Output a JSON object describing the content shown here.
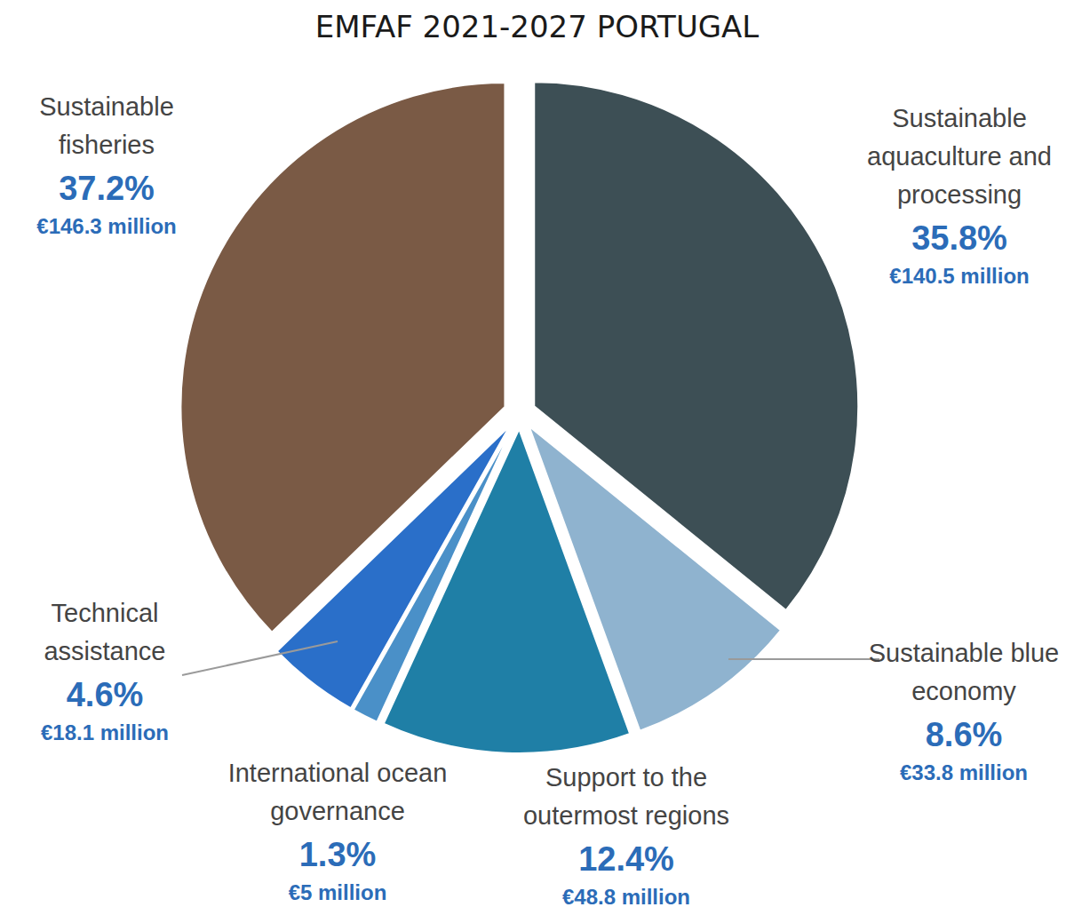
{
  "chart_data": {
    "type": "pie",
    "title": "EMFAF 2021-2027 PORTUGAL",
    "categories": [
      "Sustainable aquaculture and processing",
      "Sustainable blue economy",
      "Support to the outermost regions",
      "International ocean governance",
      "Technical assistance",
      "Sustainable fisheries"
    ],
    "values": [
      35.8,
      8.6,
      12.4,
      1.3,
      4.6,
      37.2
    ],
    "value_labels": [
      "35.8%",
      "8.6%",
      "12.4%",
      "1.3%",
      "4.6%",
      "37.2%"
    ],
    "amount_labels": [
      "€140.5 million",
      "€33.8 million",
      "€48.8 million",
      "€5 million",
      "€18.1 million",
      "€146.3 million"
    ],
    "colors": [
      "#3d4f55",
      "#8fb3cf",
      "#1f7fa6",
      "#4a90c8",
      "#2a6fc9",
      "#7a5a45"
    ],
    "data_labels": true
  }
}
